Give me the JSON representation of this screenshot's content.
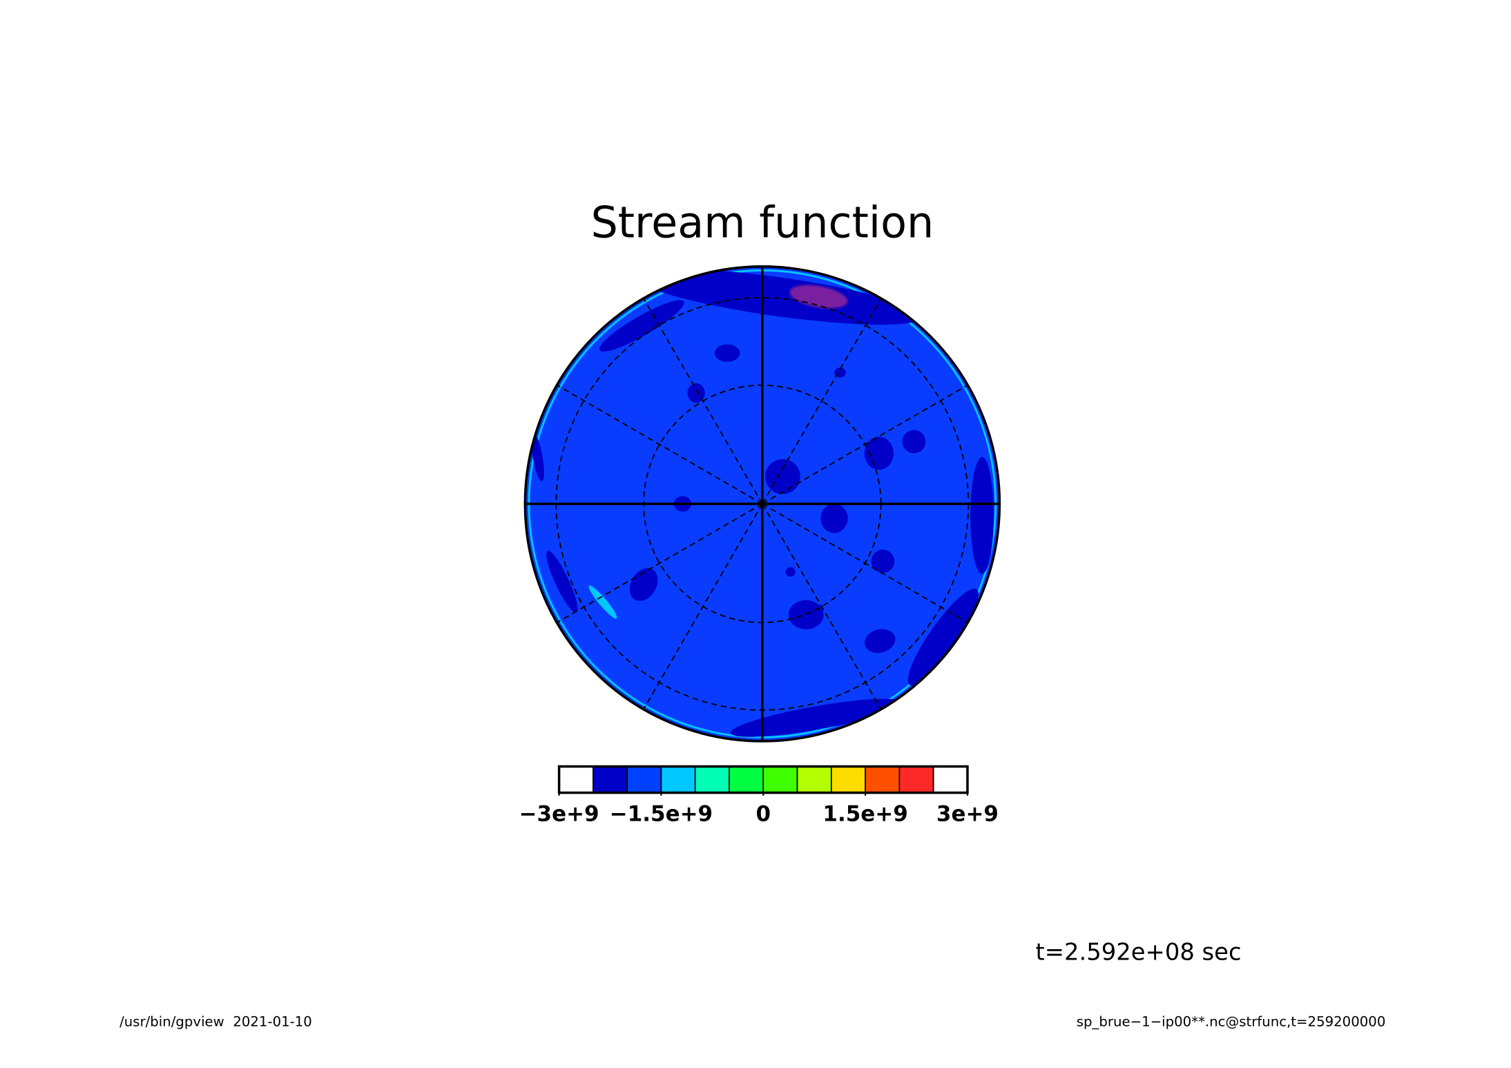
{
  "chart_data": {
    "type": "polar-contour",
    "title": "Stream function",
    "colorbar": {
      "levels": [
        -3000000000,
        -2500000000,
        -2000000000,
        -1500000000,
        -1000000000,
        -500000000,
        0,
        500000000,
        1000000000,
        1500000000,
        2000000000,
        2500000000,
        3000000000
      ],
      "colors": [
        "#ffffff",
        "#0000c8",
        "#0040ff",
        "#00c8ff",
        "#00ffb4",
        "#00ff40",
        "#40ff00",
        "#b4ff00",
        "#ffdc00",
        "#ff5000",
        "#ff2828",
        "#ffffff"
      ],
      "ticks": [
        {
          "value": -3000000000,
          "label": "−3e+9"
        },
        {
          "value": -1500000000,
          "label": "−1.5e+9"
        },
        {
          "value": 0,
          "label": "0"
        },
        {
          "value": 1500000000,
          "label": "1.5e+9"
        },
        {
          "value": 3000000000,
          "label": "3e+9"
        }
      ]
    },
    "annotation": "t=2.592e+08 sec",
    "footer_left": "/usr/bin/gpview  2021-01-10",
    "footer_right": "sp_brue−1−ip00**.nc@strfunc,t=259200000"
  }
}
